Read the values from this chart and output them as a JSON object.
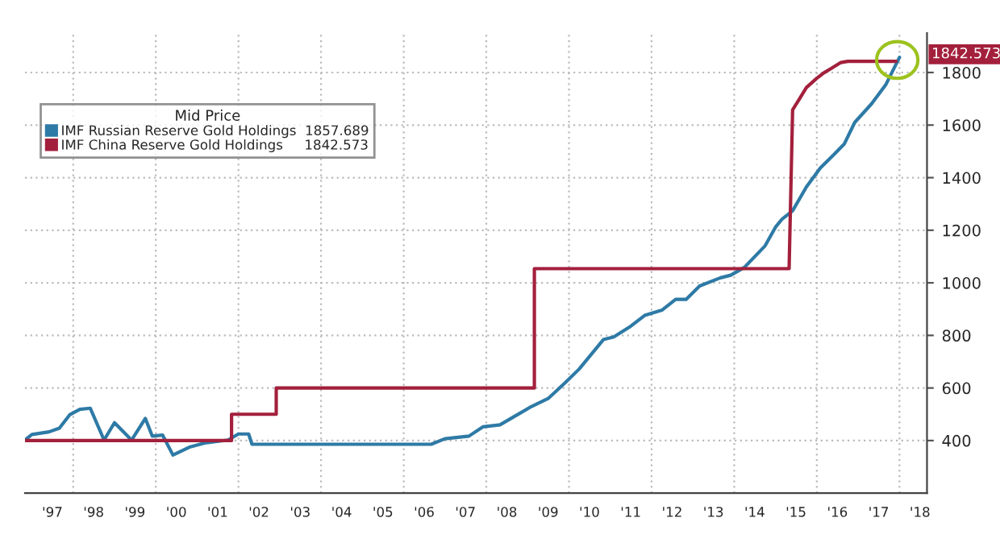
{
  "chart_data": {
    "type": "line",
    "legend_title": "Mid Price",
    "series": [
      {
        "name": "IMF Russian Reserve Gold Holdings  1857.689",
        "color": "#2e7aa6",
        "x": [
          "1996-11",
          "1997-01",
          "1997-06",
          "1997-09",
          "1997-12",
          "1998-03",
          "1998-06",
          "1998-10",
          "1999-01",
          "1999-06",
          "1999-10",
          "1999-12",
          "2000-03",
          "2000-06",
          "2000-11",
          "2001-03",
          "2001-10",
          "2002-01",
          "2002-04",
          "2002-05",
          "2003-06",
          "2005-05",
          "2006-09",
          "2007-01",
          "2007-08",
          "2007-12",
          "2008-05",
          "2008-10",
          "2009-02",
          "2009-07",
          "2009-12",
          "2010-04",
          "2010-11",
          "2011-02",
          "2011-07",
          "2011-11",
          "2012-04",
          "2012-08",
          "2012-11",
          "2013-03",
          "2013-09",
          "2013-12",
          "2014-04",
          "2014-10",
          "2015-01",
          "2015-03",
          "2015-06",
          "2015-10",
          "2016-02",
          "2016-06",
          "2016-09",
          "2016-12",
          "2017-05",
          "2017-09",
          "2018-01"
        ],
        "values": [
          402,
          423,
          433,
          447,
          498,
          519,
          523,
          402,
          468,
          402,
          484,
          417,
          421,
          345,
          376,
          390,
          402,
          425,
          425,
          386,
          386,
          386,
          386,
          407,
          417,
          452,
          460,
          498,
          529,
          560,
          621,
          672,
          784,
          794,
          835,
          876,
          896,
          937,
          937,
          988,
          1019,
          1029,
          1059,
          1141,
          1212,
          1243,
          1274,
          1365,
          1437,
          1488,
          1529,
          1610,
          1682,
          1753,
          1857.689
        ]
      },
      {
        "name": "IMF China Reserve Gold Holdings     1842.573",
        "color": "#a3203c",
        "x": [
          "1996-11",
          "2001-11",
          "2001-11",
          "2002-12",
          "2002-12",
          "2009-03",
          "2009-03",
          "2015-05",
          "2015-06",
          "2015-08",
          "2015-10",
          "2016-01",
          "2016-03",
          "2016-05",
          "2016-08",
          "2016-10",
          "2017-12"
        ],
        "values": [
          400,
          400,
          500,
          500,
          600,
          600,
          1054,
          1054,
          1658,
          1700,
          1743,
          1778,
          1798,
          1814,
          1838,
          1842.573,
          1842.573
        ]
      }
    ],
    "xlim": [
      "1996-11",
      "2018-09"
    ],
    "xticks": [
      {
        "value": "1997-07",
        "label": "'97"
      },
      {
        "value": "1998-07",
        "label": "'98"
      },
      {
        "value": "1999-07",
        "label": "'99"
      },
      {
        "value": "2000-07",
        "label": "'00"
      },
      {
        "value": "2001-07",
        "label": "'01"
      },
      {
        "value": "2002-07",
        "label": "'02"
      },
      {
        "value": "2003-07",
        "label": "'03"
      },
      {
        "value": "2004-07",
        "label": "'04"
      },
      {
        "value": "2005-07",
        "label": "'05"
      },
      {
        "value": "2006-07",
        "label": "'06"
      },
      {
        "value": "2007-07",
        "label": "'07"
      },
      {
        "value": "2008-07",
        "label": "'08"
      },
      {
        "value": "2009-07",
        "label": "'09"
      },
      {
        "value": "2010-07",
        "label": "'10"
      },
      {
        "value": "2011-07",
        "label": "'11"
      },
      {
        "value": "2012-07",
        "label": "'12"
      },
      {
        "value": "2013-07",
        "label": "'13"
      },
      {
        "value": "2014-07",
        "label": "'14"
      },
      {
        "value": "2015-07",
        "label": "'15"
      },
      {
        "value": "2016-07",
        "label": "'16"
      },
      {
        "value": "2017-07",
        "label": "'17"
      },
      {
        "value": "2018-07",
        "label": "'18"
      },
      {
        "value": "1998-01",
        "label": null
      },
      {
        "value": "2000-01",
        "label": null
      },
      {
        "value": "2002-01",
        "label": null
      },
      {
        "value": "2004-01",
        "label": null
      },
      {
        "value": "2006-01",
        "label": null
      },
      {
        "value": "2008-01",
        "label": null
      },
      {
        "value": "2010-01",
        "label": null
      },
      {
        "value": "2012-01",
        "label": null
      },
      {
        "value": "2014-01",
        "label": null
      },
      {
        "value": "2016-01",
        "label": null
      },
      {
        "value": "2018-01",
        "label": null
      }
    ],
    "ylim": [
      200,
      1950
    ],
    "yticks": [
      400,
      600,
      800,
      1000,
      1200,
      1400,
      1600,
      1800
    ],
    "grid": true,
    "legend": "top left",
    "annotations": [
      "1842.573"
    ]
  }
}
